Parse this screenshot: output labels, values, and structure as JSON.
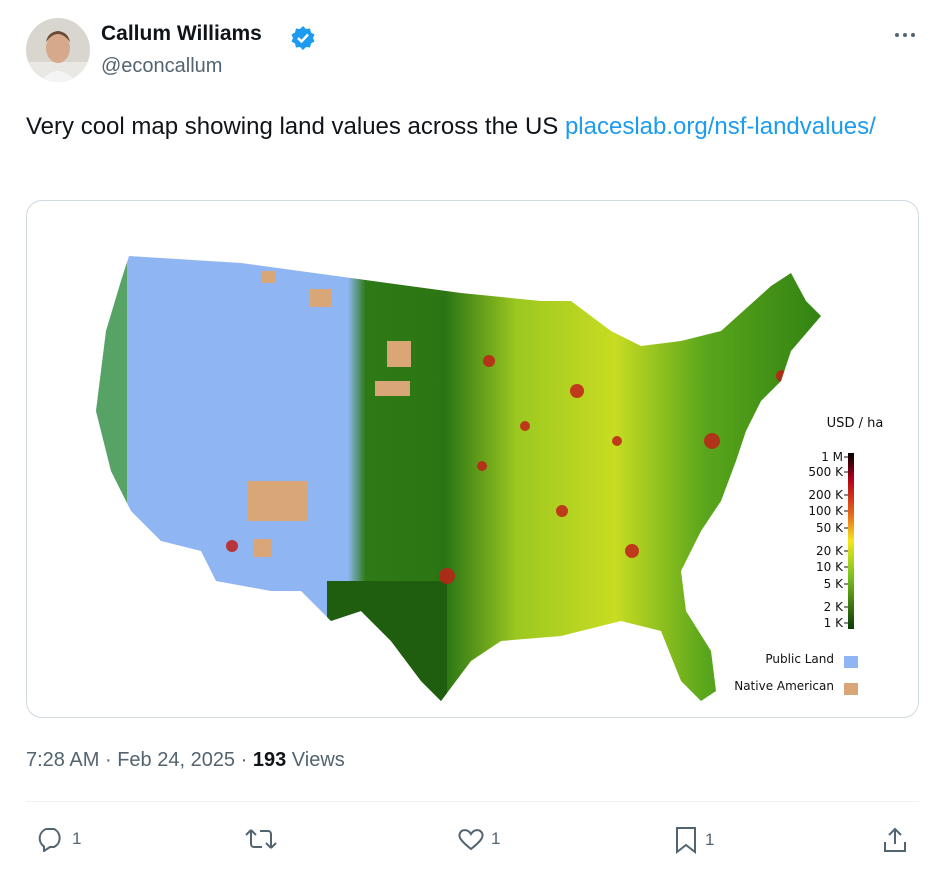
{
  "author": {
    "name": "Callum Williams",
    "handle": "@econcallum"
  },
  "tweet": {
    "text": "Very cool map showing land values across the US ",
    "link": "placeslab.org/nsf-landvalues/"
  },
  "map": {
    "legend": {
      "title": "USD / ha",
      "ticks": [
        "1 M",
        "500 K",
        "200 K",
        "100 K",
        "50 K",
        "20 K",
        "10 K",
        "5 K",
        "2 K",
        "1 K"
      ],
      "public_land": "Public Land",
      "native_american": "Native American"
    }
  },
  "meta": {
    "time": "7:28 AM",
    "separator": "·",
    "date": "Feb 24, 2025",
    "views": "193",
    "views_label": "Views"
  },
  "actions": {
    "replies": "1",
    "likes": "1",
    "bookmarks": "1"
  }
}
